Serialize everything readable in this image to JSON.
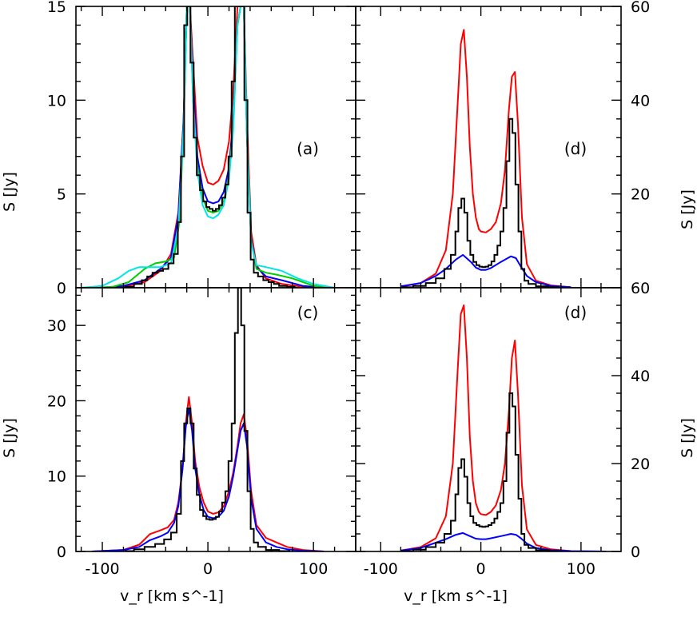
{
  "figure": {
    "xlabel": "v_r [km s^-1]",
    "ylabel_left": "S [Jy]",
    "ylabel_right": "S [Jy]"
  },
  "chart_data": [
    {
      "id": "a",
      "type": "line",
      "panel_label": "(a)",
      "xlim": [
        -125,
        140
      ],
      "ylim": [
        0,
        15
      ],
      "yaxis_side": "left",
      "xticks": [
        -100,
        0,
        100
      ],
      "yticks": [
        0,
        5,
        10,
        15
      ],
      "observed_spectrum": {
        "color": "#000000",
        "x": [
          -75,
          -65,
          -60,
          -55,
          -50,
          -45,
          -40,
          -35,
          -30,
          -27,
          -24,
          -21,
          -18,
          -15,
          -12,
          -9,
          -6,
          -3,
          0,
          3,
          6,
          9,
          12,
          15,
          18,
          21,
          24,
          27,
          30,
          33,
          36,
          39,
          42,
          45,
          50,
          55,
          60,
          65,
          70,
          80
        ],
        "y": [
          0.05,
          0.2,
          0.4,
          0.6,
          0.8,
          0.9,
          1.0,
          1.3,
          1.8,
          3.5,
          7,
          14,
          16,
          12,
          8,
          6,
          5.2,
          4.6,
          4.3,
          4.2,
          4.1,
          4.2,
          4.4,
          4.8,
          5.5,
          7,
          11,
          16,
          22,
          18,
          10,
          4,
          1.5,
          0.8,
          0.6,
          0.4,
          0.3,
          0.2,
          0.1,
          0.05
        ]
      },
      "model_curves": [
        {
          "color": "#ff0000",
          "x": [
            -100,
            -80,
            -60,
            -45,
            -35,
            -28,
            -23,
            -20,
            -17,
            -14,
            -10,
            -5,
            0,
            5,
            10,
            15,
            20,
            24,
            28,
            31,
            34,
            37,
            41,
            46,
            55,
            70,
            90,
            110
          ],
          "y": [
            0,
            0.05,
            0.3,
            0.9,
            1.8,
            4,
            9,
            15,
            17,
            12,
            8,
            6.5,
            5.6,
            5.5,
            5.7,
            6.3,
            7.8,
            10.5,
            16,
            22,
            18,
            9,
            3,
            1.2,
            0.5,
            0.2,
            0.05,
            0
          ]
        },
        {
          "color": "#0000ff",
          "x": [
            -100,
            -80,
            -60,
            -45,
            -35,
            -28,
            -23,
            -20,
            -17,
            -14,
            -10,
            -5,
            0,
            5,
            10,
            15,
            20,
            24,
            28,
            31,
            34,
            37,
            41,
            46,
            55,
            70,
            90,
            110
          ],
          "y": [
            0,
            0.1,
            0.4,
            1.0,
            1.6,
            3.8,
            9,
            15,
            17,
            11,
            7,
            5.3,
            4.6,
            4.5,
            4.6,
            5.1,
            6.4,
            9,
            14,
            22,
            18,
            8,
            2.6,
            1.1,
            0.6,
            0.4,
            0.1,
            0
          ]
        },
        {
          "color": "#00cc00",
          "x": [
            -110,
            -90,
            -75,
            -60,
            -50,
            -40,
            -32,
            -27,
            -23,
            -20,
            -17,
            -14,
            -10,
            -5,
            0,
            5,
            10,
            15,
            20,
            24,
            28,
            31,
            34,
            37,
            41,
            46,
            55,
            65,
            80,
            100,
            120
          ],
          "y": [
            0,
            0.05,
            0.3,
            1.0,
            1.3,
            1.4,
            1.6,
            3.5,
            8.5,
            15,
            17,
            10,
            6.5,
            4.8,
            4.1,
            4.0,
            4.1,
            4.6,
            6,
            8.6,
            14,
            22,
            18,
            8,
            2.5,
            1.0,
            0.8,
            0.7,
            0.5,
            0.1,
            0
          ]
        },
        {
          "color": "#00e5e5",
          "x": [
            -120,
            -100,
            -85,
            -75,
            -65,
            -55,
            -45,
            -35,
            -28,
            -23,
            -20,
            -17,
            -14,
            -10,
            -5,
            0,
            5,
            10,
            15,
            20,
            24,
            28,
            31,
            34,
            37,
            41,
            46,
            55,
            70,
            85,
            100,
            120
          ],
          "y": [
            0,
            0.1,
            0.5,
            0.9,
            1.1,
            1.1,
            1.1,
            1.3,
            3.2,
            8.5,
            15,
            17,
            10,
            6.2,
            4.4,
            3.8,
            3.7,
            3.9,
            4.4,
            5.8,
            8.4,
            14,
            22,
            18,
            8,
            2.4,
            1.2,
            1.1,
            0.9,
            0.5,
            0.2,
            0
          ]
        }
      ]
    },
    {
      "id": "d_top",
      "type": "line",
      "panel_label": "(d)",
      "xlim": [
        -125,
        140
      ],
      "ylim": [
        0,
        60
      ],
      "yaxis_side": "right",
      "xticks": [
        -100,
        0,
        100
      ],
      "yticks": [
        20,
        40,
        60
      ],
      "observed_spectrum": {
        "color": "#000000",
        "x": [
          -75,
          -60,
          -50,
          -40,
          -33,
          -27,
          -24,
          -21,
          -18,
          -15,
          -12,
          -9,
          -6,
          -3,
          0,
          3,
          6,
          9,
          12,
          15,
          18,
          21,
          24,
          27,
          30,
          33,
          36,
          39,
          42,
          45,
          50,
          60,
          75
        ],
        "y": [
          0.1,
          0.4,
          1,
          2,
          4,
          7,
          12,
          17,
          19,
          16,
          10,
          7,
          5.5,
          4.8,
          4.5,
          4.4,
          4.5,
          4.8,
          5.6,
          7,
          9,
          12,
          17,
          27,
          36,
          33,
          22,
          12,
          4,
          1.5,
          0.8,
          0.3,
          0.1
        ]
      },
      "model_curves": [
        {
          "color": "#ff0000",
          "x": [
            -80,
            -60,
            -45,
            -35,
            -28,
            -23,
            -20,
            -17,
            -14,
            -11,
            -8,
            -5,
            -2,
            0,
            5,
            10,
            15,
            20,
            24,
            28,
            31,
            34,
            37,
            41,
            46,
            55,
            70,
            90
          ],
          "y": [
            0.2,
            1,
            3,
            8,
            20,
            40,
            52,
            55,
            45,
            30,
            20,
            15,
            12.5,
            12,
            11.8,
            12.5,
            14,
            18,
            25,
            38,
            45,
            46,
            35,
            15,
            5,
            1.5,
            0.5,
            0.1
          ]
        },
        {
          "color": "#0000ff",
          "x": [
            -80,
            -60,
            -45,
            -35,
            -25,
            -18,
            -10,
            -5,
            0,
            5,
            10,
            20,
            30,
            35,
            40,
            46,
            55,
            70,
            90
          ],
          "y": [
            0.3,
            1,
            2.5,
            4,
            6,
            7,
            5.5,
            4.3,
            3.8,
            3.8,
            4.2,
            5.5,
            6.7,
            6.3,
            4.5,
            2.5,
            1.2,
            0.4,
            0.1
          ]
        }
      ]
    },
    {
      "id": "c",
      "type": "line",
      "panel_label": "(c)",
      "xlim": [
        -125,
        140
      ],
      "ylim": [
        0,
        35
      ],
      "yaxis_side": "left",
      "xticks": [
        -100,
        0,
        100
      ],
      "yticks": [
        0,
        10,
        20,
        30
      ],
      "observed_spectrum": {
        "color": "#000000",
        "x": [
          -75,
          -65,
          -55,
          -45,
          -38,
          -32,
          -27,
          -24,
          -21,
          -18,
          -15,
          -12,
          -9,
          -6,
          -3,
          0,
          3,
          6,
          9,
          12,
          15,
          18,
          21,
          24,
          27,
          30,
          33,
          36,
          39,
          42,
          45,
          50,
          60,
          75
        ],
        "y": [
          0.05,
          0.3,
          0.6,
          1.0,
          1.6,
          2.5,
          5,
          12,
          17,
          19,
          17,
          11,
          7.5,
          5.5,
          4.7,
          4.3,
          4.2,
          4.3,
          4.6,
          5.3,
          6.5,
          8,
          12,
          17,
          29,
          35,
          30,
          16,
          8,
          3,
          1.2,
          0.6,
          0.2,
          0.05
        ]
      },
      "model_curves": [
        {
          "color": "#ff0000",
          "x": [
            -110,
            -80,
            -65,
            -55,
            -45,
            -38,
            -32,
            -28,
            -24,
            -21,
            -18,
            -15,
            -12,
            -8,
            -4,
            0,
            5,
            10,
            15,
            20,
            24,
            28,
            31,
            34,
            37,
            41,
            46,
            55,
            65,
            75,
            90,
            110
          ],
          "y": [
            0,
            0.2,
            0.9,
            2.3,
            2.8,
            3.2,
            4.2,
            6.5,
            11,
            17,
            20.5,
            17,
            12,
            8.5,
            6.5,
            5.3,
            5.0,
            5.2,
            6,
            8,
            10.5,
            14,
            17,
            18.2,
            15,
            8,
            3.5,
            1.8,
            1.2,
            0.6,
            0.2,
            0
          ]
        },
        {
          "color": "#0000ff",
          "x": [
            -110,
            -80,
            -65,
            -55,
            -45,
            -38,
            -32,
            -28,
            -24,
            -21,
            -18,
            -15,
            -12,
            -8,
            -4,
            0,
            5,
            10,
            15,
            20,
            24,
            28,
            31,
            34,
            37,
            41,
            46,
            55,
            65,
            75,
            90,
            110
          ],
          "y": [
            0,
            0.2,
            0.6,
            1.5,
            2.0,
            2.5,
            3.8,
            6,
            11,
            16.5,
            19,
            16,
            11,
            7.5,
            5.5,
            4.6,
            4.4,
            4.6,
            5.4,
            7.3,
            10,
            13.5,
            16,
            17,
            14,
            7,
            3,
            1.2,
            0.6,
            0.3,
            0.1,
            0
          ]
        }
      ]
    },
    {
      "id": "d_bottom",
      "type": "line",
      "panel_label": "(d)",
      "xlim": [
        -125,
        140
      ],
      "ylim": [
        0,
        60
      ],
      "yaxis_side": "right",
      "xticks": [
        -100,
        0,
        100
      ],
      "yticks": [
        0,
        20,
        40,
        60
      ],
      "observed_spectrum": {
        "color": "#000000",
        "x": [
          -75,
          -60,
          -50,
          -40,
          -33,
          -27,
          -24,
          -21,
          -18,
          -15,
          -12,
          -9,
          -6,
          -3,
          0,
          3,
          6,
          9,
          12,
          15,
          18,
          21,
          24,
          27,
          30,
          33,
          36,
          39,
          42,
          45,
          50,
          60,
          75
        ],
        "y": [
          0.1,
          0.4,
          1,
          2,
          4,
          7,
          13,
          19,
          21,
          17,
          11,
          8,
          6.5,
          6,
          5.7,
          5.6,
          5.7,
          6,
          6.5,
          7.5,
          9,
          11,
          16,
          27,
          36,
          33,
          22,
          12,
          4,
          1.5,
          0.8,
          0.3,
          0.1
        ]
      },
      "model_curves": [
        {
          "color": "#ff0000",
          "x": [
            -80,
            -60,
            -45,
            -35,
            -28,
            -23,
            -20,
            -17,
            -14,
            -11,
            -8,
            -5,
            -2,
            0,
            5,
            10,
            15,
            20,
            24,
            28,
            31,
            34,
            37,
            41,
            46,
            55,
            70,
            90
          ],
          "y": [
            0.2,
            1,
            3,
            8,
            20,
            42,
            54,
            56,
            44,
            26,
            16,
            11,
            9,
            8.5,
            8.3,
            9,
            10.5,
            14,
            20,
            32,
            44,
            48,
            36,
            15,
            5,
            1.5,
            0.5,
            0.1
          ]
        },
        {
          "color": "#0000ff",
          "x": [
            -80,
            -60,
            -45,
            -35,
            -25,
            -18,
            -10,
            -5,
            0,
            5,
            10,
            20,
            30,
            35,
            40,
            46,
            55,
            70,
            90,
            110,
            125
          ],
          "y": [
            0.2,
            0.8,
            2,
            2.8,
            3.8,
            4.2,
            3.4,
            2.9,
            2.8,
            2.8,
            3.0,
            3.5,
            4.0,
            3.8,
            3.0,
            1.8,
            0.8,
            0.3,
            0.1,
            0.05,
            0
          ]
        }
      ]
    }
  ]
}
